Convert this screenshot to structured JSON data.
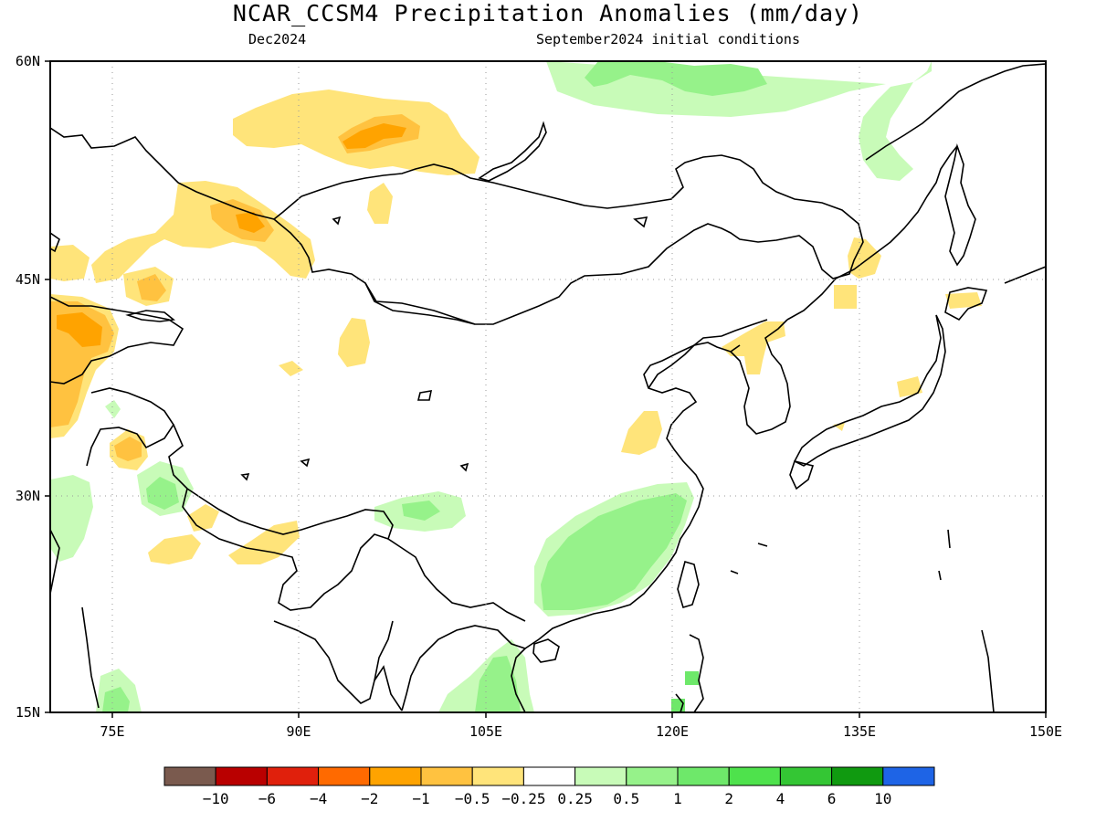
{
  "title": "NCAR_CCSM4 Precipitation Anomalies (mm/day)",
  "subtitle_left": "Dec2024",
  "subtitle_right": "September2024 initial conditions",
  "map": {
    "lon_range": [
      70,
      150
    ],
    "lat_range": [
      15,
      60
    ],
    "lon_ticks": [
      "75E",
      "90E",
      "105E",
      "120E",
      "135E",
      "150E"
    ],
    "lat_ticks": [
      "60N",
      "45N",
      "30N",
      "15N"
    ],
    "grid": "dotted"
  },
  "legend": {
    "colors": [
      "#7a5a4e",
      "#b90000",
      "#e0200c",
      "#ff6a00",
      "#ffa300",
      "#ffc240",
      "#ffe47a",
      "#ffffff",
      "#c8fbb8",
      "#96f28a",
      "#6ee86a",
      "#4ee24c",
      "#34c634",
      "#109a10",
      "#1e64e6"
    ],
    "labels": [
      "-10",
      "-6",
      "-4",
      "-2",
      "-1",
      "-0.5",
      "-0.25",
      "0.25",
      "0.5",
      "1",
      "2",
      "4",
      "6",
      "10"
    ]
  },
  "colors": {
    "dry_light": "#ffe47a",
    "dry_medium": "#ffc240",
    "dry_strong": "#ffa300",
    "wet_light": "#c8fbb8",
    "wet_medium": "#96f28a",
    "wet_strong": "#6ee86a"
  }
}
